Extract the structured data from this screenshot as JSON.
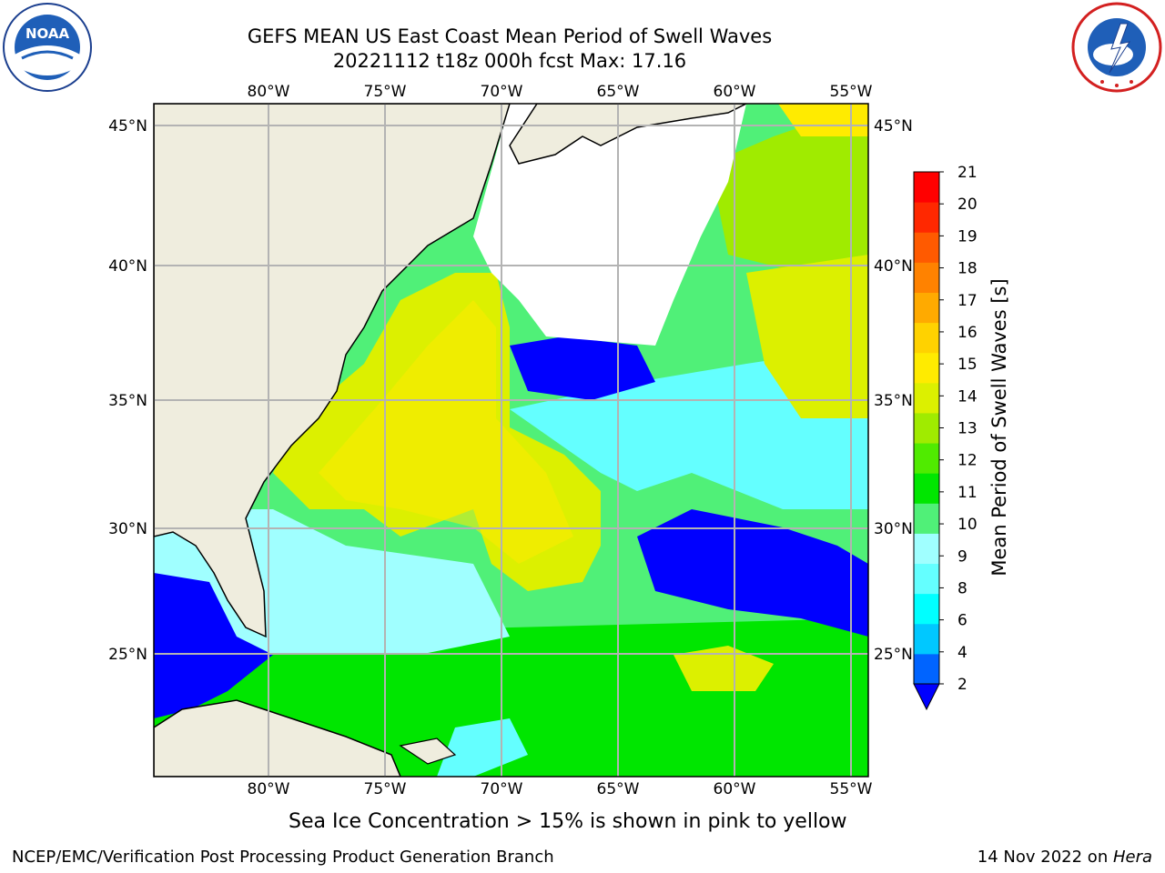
{
  "header": {
    "title_line1": "GEFS MEAN US East Coast Mean Period of Swell Waves",
    "title_line2": "20221112 t18z 000h fcst   Max: 17.16"
  },
  "logos": {
    "noaa": {
      "text": "NOAA",
      "ring_text": "NATIONAL OCEANIC AND ATMOSPHERIC ADMINISTRATION · U.S. DEPARTMENT OF COMMERCE"
    },
    "nws": {
      "ring_text": "NATIONAL WEATHER SERVICE"
    }
  },
  "map": {
    "lon_ticks": [
      "80°W",
      "75°W",
      "70°W",
      "65°W",
      "60°W",
      "55°W"
    ],
    "lat_ticks_left": [
      "45°N",
      "40°N",
      "35°N",
      "30°N",
      "25°N"
    ],
    "lat_ticks_right": [
      "45°N",
      "40°N",
      "35°N",
      "30°N",
      "25°N"
    ],
    "ice_note": "Sea Ice Concentration > 15% is shown in pink to yellow",
    "colors": {
      "land": "#efedde",
      "missing": "#ffffff",
      "grid": "#b3b3b3"
    }
  },
  "colorbar": {
    "title": "Mean Period of Swell Waves [s]",
    "labels": [
      "2",
      "4",
      "6",
      "8",
      "9",
      "10",
      "11",
      "12",
      "13",
      "14",
      "15",
      "16",
      "17",
      "18",
      "19",
      "20",
      "21"
    ],
    "colors": [
      "#0064ff",
      "#00c8ff",
      "#00ffff",
      "#64ffff",
      "#a0ffff",
      "#50f078",
      "#00e600",
      "#50eb00",
      "#a0eb00",
      "#dcf000",
      "#ffeb00",
      "#ffd200",
      "#ffaa00",
      "#ff8200",
      "#ff5a00",
      "#ff2800",
      "#ff0000"
    ],
    "extend_color": "#0000ff"
  },
  "footer": {
    "left": "NCEP/EMC/Verification Post Processing Product Generation Branch",
    "right_date": "14 Nov 2022 on ",
    "right_host": "Hera"
  }
}
